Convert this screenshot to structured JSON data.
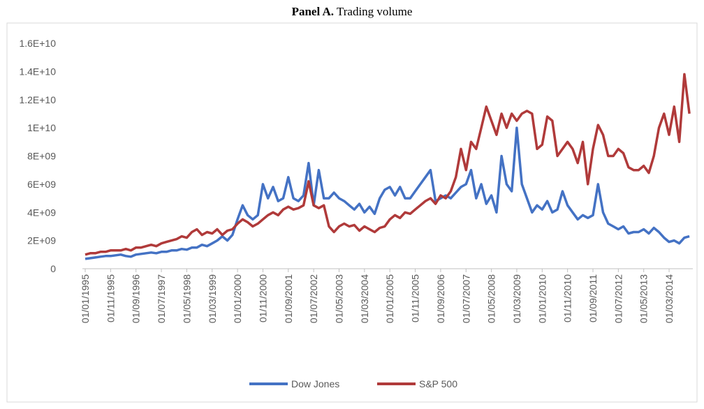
{
  "chart_data": {
    "type": "line",
    "title_label": "Panel A.",
    "title": "Trading volume",
    "categories": [
      "01/01/1995",
      null,
      null,
      null,
      null,
      "01/11/1995",
      null,
      null,
      null,
      null,
      "01/09/1996",
      null,
      null,
      null,
      null,
      "01/07/1997",
      null,
      null,
      null,
      null,
      "01/05/1998",
      null,
      null,
      null,
      null,
      "01/03/1999",
      null,
      null,
      null,
      null,
      "01/01/2000",
      null,
      null,
      null,
      null,
      "01/11/2000",
      null,
      null,
      null,
      null,
      "01/09/2001",
      null,
      null,
      null,
      null,
      "01/07/2002",
      null,
      null,
      null,
      null,
      "01/05/2003",
      null,
      null,
      null,
      null,
      "01/03/2004",
      null,
      null,
      null,
      null,
      "01/01/2005",
      null,
      null,
      null,
      null,
      "01/11/2005",
      null,
      null,
      null,
      null,
      "01/09/2006",
      null,
      null,
      null,
      null,
      "01/07/2007",
      null,
      null,
      null,
      null,
      "01/05/2008",
      null,
      null,
      null,
      null,
      "01/03/2009",
      null,
      null,
      null,
      null,
      "01/01/2010",
      null,
      null,
      null,
      null,
      "01/11/2010",
      null,
      null,
      null,
      null,
      "01/09/2011",
      null,
      null,
      null,
      null,
      "01/07/2012",
      null,
      null,
      null,
      null,
      "01/05/2013",
      null,
      null,
      null,
      null,
      "01/03/2014",
      null,
      null,
      null,
      null
    ],
    "series": [
      {
        "name": "Dow Jones",
        "color": "#4472c4",
        "values": [
          700000000.0,
          750000000.0,
          800000000.0,
          850000000.0,
          900000000.0,
          900000000.0,
          950000000.0,
          1000000000.0,
          900000000.0,
          850000000.0,
          1000000000.0,
          1050000000.0,
          1100000000.0,
          1150000000.0,
          1100000000.0,
          1200000000.0,
          1200000000.0,
          1300000000.0,
          1300000000.0,
          1400000000.0,
          1350000000.0,
          1500000000.0,
          1500000000.0,
          1700000000.0,
          1600000000.0,
          1800000000.0,
          2000000000.0,
          2300000000.0,
          2000000000.0,
          2400000000.0,
          3500000000.0,
          4500000000.0,
          3800000000.0,
          3500000000.0,
          3800000000.0,
          6000000000.0,
          5000000000.0,
          5800000000.0,
          4800000000.0,
          5000000000.0,
          6500000000.0,
          5000000000.0,
          4800000000.0,
          5200000000.0,
          7500000000.0,
          4500000000.0,
          7000000000.0,
          5000000000.0,
          5000000000.0,
          5400000000.0,
          5000000000.0,
          4800000000.0,
          4500000000.0,
          4200000000.0,
          4600000000.0,
          4000000000.0,
          4400000000.0,
          3900000000.0,
          5000000000.0,
          5600000000.0,
          5800000000.0,
          5200000000.0,
          5800000000.0,
          5000000000.0,
          5000000000.0,
          5500000000.0,
          6000000000.0,
          6500000000.0,
          7000000000.0,
          4800000000.0,
          5000000000.0,
          5200000000.0,
          5000000000.0,
          5400000000.0,
          5800000000.0,
          6000000000.0,
          7000000000.0,
          5000000000.0,
          6000000000.0,
          4600000000.0,
          5200000000.0,
          4000000000.0,
          8000000000.0,
          6000000000.0,
          5500000000.0,
          10000000000.0,
          6000000000.0,
          5000000000.0,
          4000000000.0,
          4500000000.0,
          4200000000.0,
          4800000000.0,
          4000000000.0,
          4200000000.0,
          5500000000.0,
          4500000000.0,
          4000000000.0,
          3500000000.0,
          3800000000.0,
          3600000000.0,
          3800000000.0,
          6000000000.0,
          4000000000.0,
          3200000000.0,
          3000000000.0,
          2800000000.0,
          3000000000.0,
          2500000000.0,
          2600000000.0,
          2600000000.0,
          2800000000.0,
          2500000000.0,
          2900000000.0,
          2600000000.0,
          2200000000.0,
          1900000000.0,
          2000000000.0,
          1800000000.0,
          2200000000.0,
          2300000000.0
        ]
      },
      {
        "name": "S&P 500",
        "color": "#b03a3a",
        "values": [
          1000000000.0,
          1100000000.0,
          1100000000.0,
          1200000000.0,
          1200000000.0,
          1300000000.0,
          1300000000.0,
          1300000000.0,
          1400000000.0,
          1300000000.0,
          1500000000.0,
          1500000000.0,
          1600000000.0,
          1700000000.0,
          1600000000.0,
          1800000000.0,
          1900000000.0,
          2000000000.0,
          2100000000.0,
          2300000000.0,
          2200000000.0,
          2600000000.0,
          2800000000.0,
          2400000000.0,
          2600000000.0,
          2500000000.0,
          2800000000.0,
          2400000000.0,
          2700000000.0,
          2800000000.0,
          3200000000.0,
          3500000000.0,
          3300000000.0,
          3000000000.0,
          3200000000.0,
          3500000000.0,
          3800000000.0,
          4000000000.0,
          3800000000.0,
          4200000000.0,
          4400000000.0,
          4200000000.0,
          4300000000.0,
          4500000000.0,
          6200000000.0,
          4500000000.0,
          4300000000.0,
          4500000000.0,
          3000000000.0,
          2600000000.0,
          3000000000.0,
          3200000000.0,
          3000000000.0,
          3100000000.0,
          2700000000.0,
          3000000000.0,
          2800000000.0,
          2600000000.0,
          2900000000.0,
          3000000000.0,
          3500000000.0,
          3800000000.0,
          3600000000.0,
          4000000000.0,
          3900000000.0,
          4200000000.0,
          4500000000.0,
          4800000000.0,
          5000000000.0,
          4600000000.0,
          5200000000.0,
          5000000000.0,
          5500000000.0,
          6500000000.0,
          8500000000.0,
          7000000000.0,
          9000000000.0,
          8500000000.0,
          10000000000.0,
          11500000000.0,
          10500000000.0,
          9500000000.0,
          11000000000.0,
          10000000000.0,
          11000000000.0,
          10500000000.0,
          11000000000.0,
          11200000000.0,
          11000000000.0,
          8500000000.0,
          8800000000.0,
          10800000000.0,
          10500000000.0,
          8000000000.0,
          8500000000.0,
          9000000000.0,
          8500000000.0,
          7500000000.0,
          9000000000.0,
          6000000000.0,
          8500000000.0,
          10200000000.0,
          9500000000.0,
          8000000000.0,
          8000000000.0,
          8500000000.0,
          8200000000.0,
          7200000000.0,
          7000000000.0,
          7000000000.0,
          7300000000.0,
          6800000000.0,
          8000000000.0,
          10000000000.0,
          11000000000.0,
          9500000000.0,
          11500000000.0,
          9000000000.0,
          13800000000.0,
          11000000000.0
        ]
      }
    ],
    "ylim": [
      0,
      16000000000
    ],
    "yticks": [
      0,
      {
        "value": 2000000000,
        "label": "2E+09"
      },
      {
        "value": 4000000000,
        "label": "4E+09"
      },
      {
        "value": 6000000000,
        "label": "6E+09"
      },
      {
        "value": 8000000000,
        "label": "8E+09"
      },
      {
        "value": 10000000000,
        "label": "1E+10"
      },
      {
        "value": 12000000000,
        "label": "1.2E+10"
      },
      {
        "value": 14000000000,
        "label": "1.4E+10"
      },
      {
        "value": 16000000000,
        "label": "1.6E+10"
      }
    ],
    "grid": false,
    "legend": "bottom"
  }
}
